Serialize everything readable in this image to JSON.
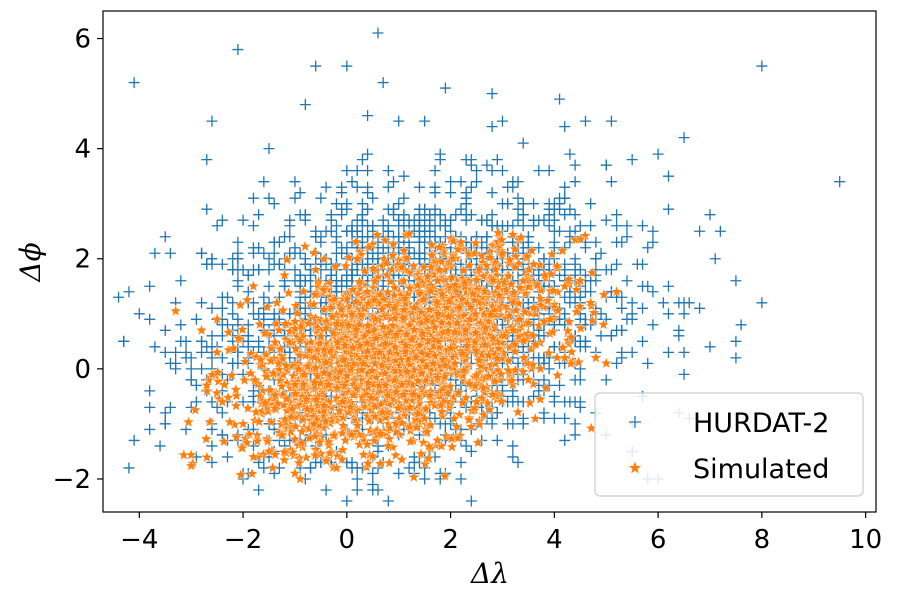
{
  "chart_data": {
    "type": "scatter",
    "title": "",
    "xlabel": "Δλ",
    "ylabel": "Δϕ",
    "xlim": [
      -4.7,
      10.2
    ],
    "ylim": [
      -2.6,
      6.5
    ],
    "xticks": [
      -4,
      -2,
      0,
      2,
      4,
      6,
      8,
      10
    ],
    "yticks": [
      -2,
      0,
      2,
      4,
      6
    ],
    "xtick_labels": [
      "−4",
      "−2",
      "0",
      "2",
      "4",
      "6",
      "8",
      "10"
    ],
    "ytick_labels": [
      "−2",
      "0",
      "2",
      "4",
      "6"
    ],
    "grid": false,
    "legend": "lower-right",
    "series": [
      {
        "name": "HURDAT-2",
        "marker": "plus",
        "color": "#1f77b4",
        "note_points": "outliers listed explicitly; dense cloud approximated",
        "points": [
          [
            -4.1,
            5.2
          ],
          [
            -2.1,
            5.8
          ],
          [
            0.6,
            6.1
          ],
          [
            -0.6,
            5.5
          ],
          [
            0.0,
            5.5
          ],
          [
            0.7,
            5.2
          ],
          [
            -0.8,
            4.8
          ],
          [
            2.8,
            5.0
          ],
          [
            4.1,
            4.9
          ],
          [
            8.0,
            5.5
          ],
          [
            9.5,
            3.4
          ],
          [
            -4.0,
            1.0
          ],
          [
            -3.5,
            -0.8
          ],
          [
            -3.5,
            -1.0
          ],
          [
            -2.7,
            3.8
          ],
          [
            -1.5,
            4.0
          ],
          [
            6.5,
            4.2
          ],
          [
            7.0,
            2.8
          ],
          [
            7.5,
            1.6
          ],
          [
            8.0,
            1.2
          ],
          [
            7.6,
            0.8
          ],
          [
            7.5,
            0.2
          ],
          [
            7.0,
            0.4
          ],
          [
            6.5,
            -0.1
          ],
          [
            5.5,
            -1.0
          ],
          [
            5.0,
            -1.2
          ],
          [
            4.2,
            -1.3
          ],
          [
            -0.4,
            -2.2
          ],
          [
            0.5,
            -2.1
          ],
          [
            1.5,
            4.5
          ],
          [
            3.0,
            4.5
          ],
          [
            4.6,
            4.5
          ],
          [
            5.1,
            4.5
          ],
          [
            1.0,
            4.5
          ],
          [
            6.0,
            3.9
          ],
          [
            5.5,
            3.8
          ],
          [
            6.8,
            2.5
          ],
          [
            7.1,
            2.0
          ],
          [
            6.2,
            3.5
          ],
          [
            -2.8,
            2.1
          ],
          [
            -2.7,
            1.9
          ],
          [
            5.8,
            -2.0
          ],
          [
            6.0,
            -2.0
          ],
          [
            1.8,
            -1.9
          ],
          [
            -1.6,
            -1.8
          ],
          [
            -2.1,
            -1.2
          ],
          [
            -3.0,
            0.0
          ],
          [
            2.2,
            -1.7
          ],
          [
            3.2,
            -1.6
          ],
          [
            4.4,
            -1.0
          ]
        ]
      },
      {
        "name": "Simulated",
        "marker": "star",
        "color": "#ff7f0e",
        "note_points": "outliers listed explicitly; dense cloud approximated",
        "points": [
          [
            -3.3,
            1.05
          ],
          [
            -2.5,
            0.3
          ],
          [
            -2.4,
            -0.6
          ],
          [
            -2.0,
            -1.0
          ],
          [
            -1.5,
            -1.5
          ],
          [
            -1.0,
            -1.9
          ],
          [
            -0.2,
            -1.8
          ],
          [
            0.8,
            -1.4
          ],
          [
            1.5,
            -0.9
          ],
          [
            2.5,
            -0.6
          ],
          [
            3.5,
            -0.2
          ],
          [
            4.2,
            0.2
          ],
          [
            4.7,
            1.2
          ],
          [
            5.2,
            1.4
          ],
          [
            4.5,
            1.6
          ],
          [
            3.6,
            1.9
          ],
          [
            3.0,
            2.1
          ],
          [
            2.2,
            2.3
          ],
          [
            1.2,
            2.45
          ],
          [
            0.2,
            2.0
          ],
          [
            -0.6,
            1.8
          ],
          [
            -1.2,
            1.7
          ],
          [
            -1.8,
            1.5
          ],
          [
            -2.5,
            0.9
          ],
          [
            -2.8,
            0.7
          ],
          [
            -1.8,
            -1.6
          ],
          [
            -0.9,
            -2.0
          ],
          [
            4.8,
            0.2
          ],
          [
            5.0,
            0.1
          ],
          [
            -2.7,
            -0.3
          ]
        ]
      }
    ]
  }
}
